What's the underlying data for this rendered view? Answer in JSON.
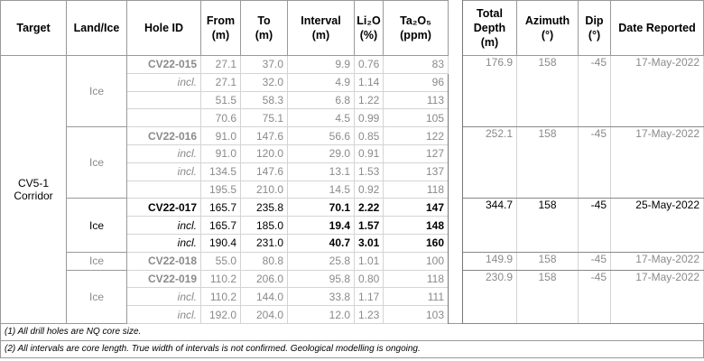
{
  "table": {
    "headers": [
      [
        "Target"
      ],
      [
        "Land/Ice"
      ],
      [
        "Hole ID"
      ],
      [
        "From",
        "(m)"
      ],
      [
        "To",
        "(m)"
      ],
      [
        "Interval",
        "(m)"
      ],
      [
        "Li₂O",
        "(%)"
      ],
      [
        "Ta₂O₅",
        "(ppm)"
      ],
      [
        "Total",
        "Depth",
        "(m)"
      ],
      [
        "Azimuth",
        "(°)"
      ],
      [
        "Dip",
        "(°)"
      ],
      [
        "Date Reported"
      ]
    ],
    "target": "CV5-1 Corridor",
    "holes": [
      {
        "land_ice": "Ice",
        "highlight": false,
        "intervals": [
          [
            "CV22-015",
            "27.1",
            "37.0",
            "9.9",
            "0.76",
            "83"
          ],
          [
            "incl.",
            "27.1",
            "32.0",
            "4.9",
            "1.14",
            "96"
          ],
          [
            null,
            "51.5",
            "58.3",
            "6.8",
            "1.22",
            "113"
          ],
          [
            null,
            "70.6",
            "75.1",
            "4.5",
            "0.99",
            "105"
          ]
        ],
        "total_depth": "176.9",
        "azimuth": "158",
        "dip": "-45",
        "date": "17-May-2022"
      },
      {
        "land_ice": "Ice",
        "highlight": false,
        "intervals": [
          [
            "CV22-016",
            "91.0",
            "147.6",
            "56.6",
            "0.85",
            "122"
          ],
          [
            "incl.",
            "91.0",
            "120.0",
            "29.0",
            "0.91",
            "127"
          ],
          [
            "incl.",
            "134.5",
            "147.6",
            "13.1",
            "1.53",
            "137"
          ],
          [
            null,
            "195.5",
            "210.0",
            "14.5",
            "0.92",
            "118"
          ]
        ],
        "total_depth": "252.1",
        "azimuth": "158",
        "dip": "-45",
        "date": "17-May-2022"
      },
      {
        "land_ice": "Ice",
        "highlight": true,
        "intervals": [
          [
            "CV22-017",
            "165.7",
            "235.8",
            "70.1",
            "2.22",
            "147"
          ],
          [
            "incl.",
            "165.7",
            "185.0",
            "19.4",
            "1.57",
            "148"
          ],
          [
            "incl.",
            "190.4",
            "231.0",
            "40.7",
            "3.01",
            "160"
          ]
        ],
        "total_depth": "344.7",
        "azimuth": "158",
        "dip": "-45",
        "date": "25-May-2022"
      },
      {
        "land_ice": "Ice",
        "highlight": false,
        "intervals": [
          [
            "CV22-018",
            "55.0",
            "80.8",
            "25.8",
            "1.01",
            "100"
          ]
        ],
        "total_depth": "149.9",
        "azimuth": "158",
        "dip": "-45",
        "date": "17-May-2022"
      },
      {
        "land_ice": "Ice",
        "highlight": false,
        "intervals": [
          [
            "CV22-019",
            "110.2",
            "206.0",
            "95.8",
            "0.80",
            "118"
          ],
          [
            "incl.",
            "110.2",
            "144.0",
            "33.8",
            "1.17",
            "111"
          ],
          [
            "incl.",
            "192.0",
            "204.0",
            "12.0",
            "1.23",
            "103"
          ]
        ],
        "total_depth": "230.9",
        "azimuth": "158",
        "dip": "-45",
        "date": "17-May-2022"
      }
    ],
    "footnotes": [
      "(1) All drill holes are NQ core size.",
      "(2) All intervals are core length. True width of intervals is not confirmed. Geological modelling is ongoing."
    ]
  }
}
